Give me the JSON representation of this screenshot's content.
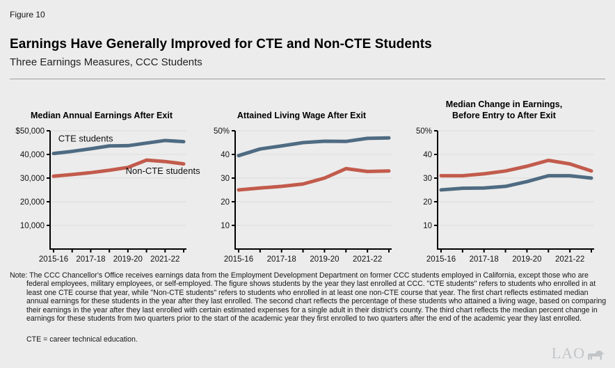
{
  "figure_label": "Figure 10",
  "title": "Earnings Have Generally Improved for CTE and Non-CTE Students",
  "subtitle": "Three Earnings Measures, CCC Students",
  "colors": {
    "cte_line": "#4e6b82",
    "non_cte_line": "#c25b4c",
    "cte_label": "#50708c",
    "non_cte_label": "#c03a1f",
    "grid": "#dbdcdc",
    "axis": "#000000",
    "background": "#ececec",
    "logo": "#c2c5c8"
  },
  "chart_data": [
    {
      "type": "line",
      "title": "Median Annual Earnings After Exit",
      "categories": [
        "2015-16",
        "2016-17",
        "2017-18",
        "2018-19",
        "2019-20",
        "2020-21",
        "2021-22",
        "2022-23"
      ],
      "x_tick_labels": [
        "2015-16",
        "",
        "2017-18",
        "",
        "2019-20",
        "",
        "2021-22",
        ""
      ],
      "y_tick_labels": [
        "$50,000",
        "40,000",
        "30,000",
        "20,000",
        "10,000"
      ],
      "ylim": [
        0,
        50000
      ],
      "grid": true,
      "series": [
        {
          "name": "CTE students",
          "color": "#4e6b82",
          "values": [
            40400,
            41300,
            42400,
            43600,
            43700,
            44800,
            45900,
            45400
          ]
        },
        {
          "name": "Non-CTE students",
          "color": "#c25b4c",
          "values": [
            30800,
            31500,
            32300,
            33300,
            34500,
            37600,
            37000,
            36000
          ]
        }
      ],
      "annotations": [
        {
          "text": "CTE students",
          "color": "#50708c",
          "x_frac": 0.06,
          "value": 45400,
          "anchor": "start"
        },
        {
          "text": "Non-CTE students",
          "color": "#c03a1f",
          "x_frac": 1.1,
          "value": 31800,
          "anchor": "end"
        }
      ]
    },
    {
      "type": "line",
      "title": "Attained Living Wage After Exit",
      "categories": [
        "2015-16",
        "2016-17",
        "2017-18",
        "2018-19",
        "2019-20",
        "2020-21",
        "2021-22",
        "2022-23"
      ],
      "x_tick_labels": [
        "2015-16",
        "",
        "2017-18",
        "",
        "2019-20",
        "",
        "2021-22",
        ""
      ],
      "y_tick_labels": [
        "50%",
        "40",
        "30",
        "20",
        "10"
      ],
      "ylim": [
        0,
        50
      ],
      "grid": true,
      "series": [
        {
          "name": "CTE students",
          "color": "#4e6b82",
          "values": [
            39.5,
            42.3,
            43.6,
            45,
            45.6,
            45.5,
            46.8,
            47
          ]
        },
        {
          "name": "Non-CTE students",
          "color": "#c25b4c",
          "values": [
            25,
            25.8,
            26.5,
            27.5,
            30,
            34,
            32.8,
            33
          ]
        }
      ],
      "annotations": []
    },
    {
      "type": "line",
      "title": "Median Change in Earnings,\nBefore Entry to After Exit",
      "categories": [
        "2015-16",
        "2016-17",
        "2017-18",
        "2018-19",
        "2019-20",
        "2020-21",
        "2021-22",
        "2022-23"
      ],
      "x_tick_labels": [
        "2015-16",
        "",
        "2017-18",
        "",
        "2019-20",
        "",
        "2021-22",
        ""
      ],
      "y_tick_labels": [
        "50%",
        "40",
        "30",
        "20",
        "10"
      ],
      "ylim": [
        0,
        50
      ],
      "grid": true,
      "series": [
        {
          "name": "CTE students",
          "color": "#4e6b82",
          "values": [
            25,
            25.7,
            25.8,
            26.5,
            28.5,
            31,
            31,
            30
          ]
        },
        {
          "name": "Non-CTE students",
          "color": "#c25b4c",
          "values": [
            31,
            31,
            31.8,
            33,
            35,
            37.5,
            36,
            33
          ]
        }
      ],
      "annotations": []
    }
  ],
  "note": {
    "label": "Note:",
    "text": "The CCC Chancellor's Office receives earnings data from the Employment Development Department on former CCC students employed in California, except those who are federal employees, military employees, or self-employed. The figure shows students by the year they last enrolled at CCC. \"CTE students\" refers to students who enrolled in at least one CTE course that year, while \"Non-CTE students\" refers to students who enrolled in at least one non-CTE course that year. The first chart reflects estimated median annual earnings for these students in the year after they last enrolled. The second chart reflects the percentage of these students who attained a living wage, based on comparing their earnings in the year after they last enrolled with certain estimated expenses for a single adult in their district's county. The third chart reflects the median percent change in earnings for these students from two quarters prior to the start of the academic year they first enrolled to two quarters after the end of the academic year they last enrolled."
  },
  "footnote": "CTE = career technical education.",
  "logo_text": "LAO"
}
